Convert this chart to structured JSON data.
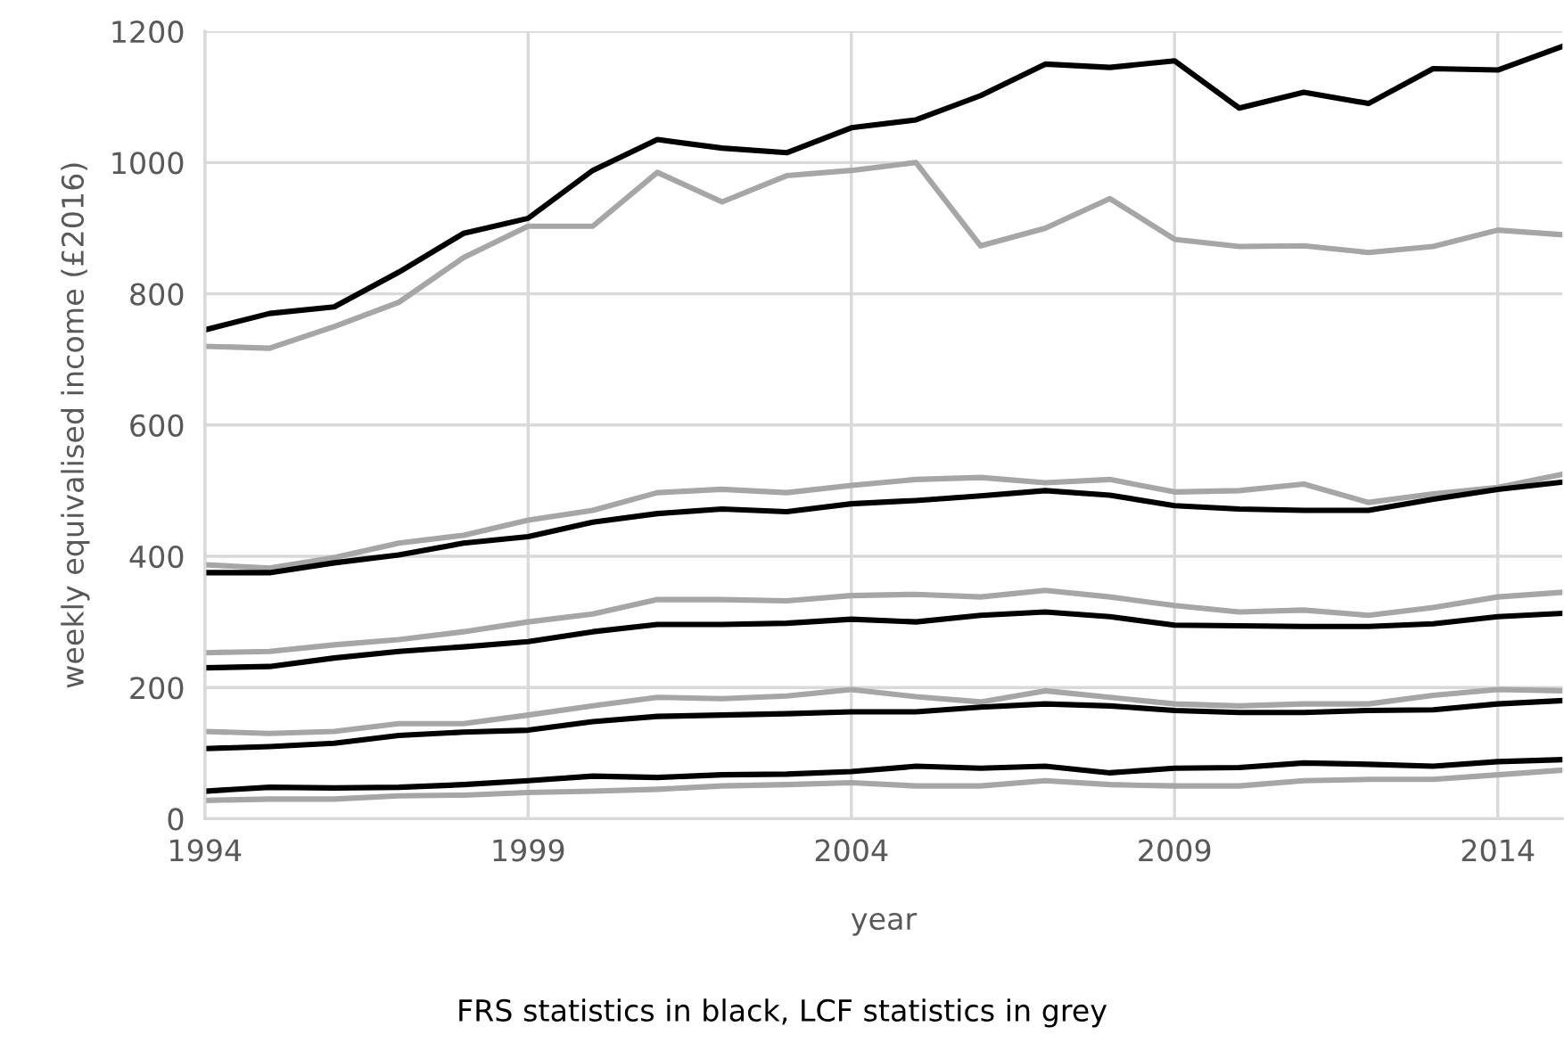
{
  "chart_data": {
    "type": "line",
    "xlabel": "year",
    "ylabel": "weekly equivalised income (£2016)",
    "annotations": [
      "FRS statistics in black, LCF statistics in grey"
    ],
    "x": [
      1994,
      1995,
      1996,
      1997,
      1998,
      1999,
      2000,
      2001,
      2002,
      2003,
      2004,
      2005,
      2006,
      2007,
      2008,
      2009,
      2010,
      2011,
      2012,
      2013,
      2014,
      2015
    ],
    "series": [
      {
        "color": "#a6a6a6",
        "values": [
          720,
          717,
          750,
          787,
          855,
          903,
          903,
          985,
          940,
          980,
          988,
          1000,
          873,
          900,
          945,
          883,
          872,
          873,
          863,
          872,
          897,
          890
        ]
      },
      {
        "color": "#a6a6a6",
        "values": [
          387,
          382,
          398,
          420,
          432,
          455,
          470,
          497,
          502,
          497,
          508,
          517,
          520,
          512,
          517,
          498,
          500,
          510,
          482,
          495,
          505,
          525
        ]
      },
      {
        "color": "#a6a6a6",
        "values": [
          253,
          255,
          265,
          273,
          285,
          300,
          312,
          334,
          334,
          332,
          340,
          342,
          338,
          348,
          338,
          325,
          315,
          318,
          310,
          322,
          338,
          345
        ]
      },
      {
        "color": "#a6a6a6",
        "values": [
          133,
          130,
          133,
          145,
          145,
          158,
          172,
          185,
          183,
          187,
          197,
          186,
          178,
          195,
          185,
          175,
          172,
          175,
          175,
          188,
          197,
          195
        ]
      },
      {
        "color": "#a6a6a6",
        "values": [
          28,
          30,
          30,
          35,
          36,
          40,
          42,
          45,
          50,
          52,
          55,
          50,
          50,
          58,
          52,
          50,
          50,
          58,
          60,
          60,
          67,
          74
        ]
      },
      {
        "color": "#000000",
        "values": [
          745,
          770,
          780,
          833,
          892,
          915,
          988,
          1035,
          1022,
          1015,
          1053,
          1065,
          1102,
          1150,
          1145,
          1155,
          1083,
          1107,
          1090,
          1143,
          1141,
          1177
        ]
      },
      {
        "color": "#000000",
        "values": [
          375,
          375,
          390,
          402,
          420,
          430,
          452,
          465,
          472,
          468,
          480,
          485,
          492,
          500,
          493,
          477,
          472,
          470,
          470,
          487,
          502,
          513
        ]
      },
      {
        "color": "#000000",
        "values": [
          230,
          232,
          245,
          255,
          262,
          270,
          285,
          296,
          296,
          298,
          304,
          300,
          310,
          315,
          308,
          295,
          294,
          293,
          293,
          297,
          308,
          313
        ]
      },
      {
        "color": "#000000",
        "values": [
          107,
          110,
          115,
          127,
          132,
          135,
          148,
          156,
          158,
          160,
          163,
          163,
          170,
          175,
          172,
          165,
          162,
          162,
          165,
          166,
          175,
          180
        ]
      },
      {
        "color": "#000000",
        "values": [
          42,
          48,
          47,
          48,
          52,
          58,
          65,
          63,
          67,
          68,
          72,
          80,
          77,
          80,
          70,
          77,
          78,
          85,
          83,
          80,
          87,
          90
        ]
      }
    ],
    "xlim": [
      1994,
      2015
    ],
    "xticks": [
      1994,
      1999,
      2004,
      2009,
      2014
    ],
    "ylim": [
      0,
      1200
    ],
    "yticks": [
      0,
      200,
      400,
      600,
      800,
      1000,
      1200
    ],
    "grid": true,
    "marker": "none",
    "line_style": "solid"
  }
}
